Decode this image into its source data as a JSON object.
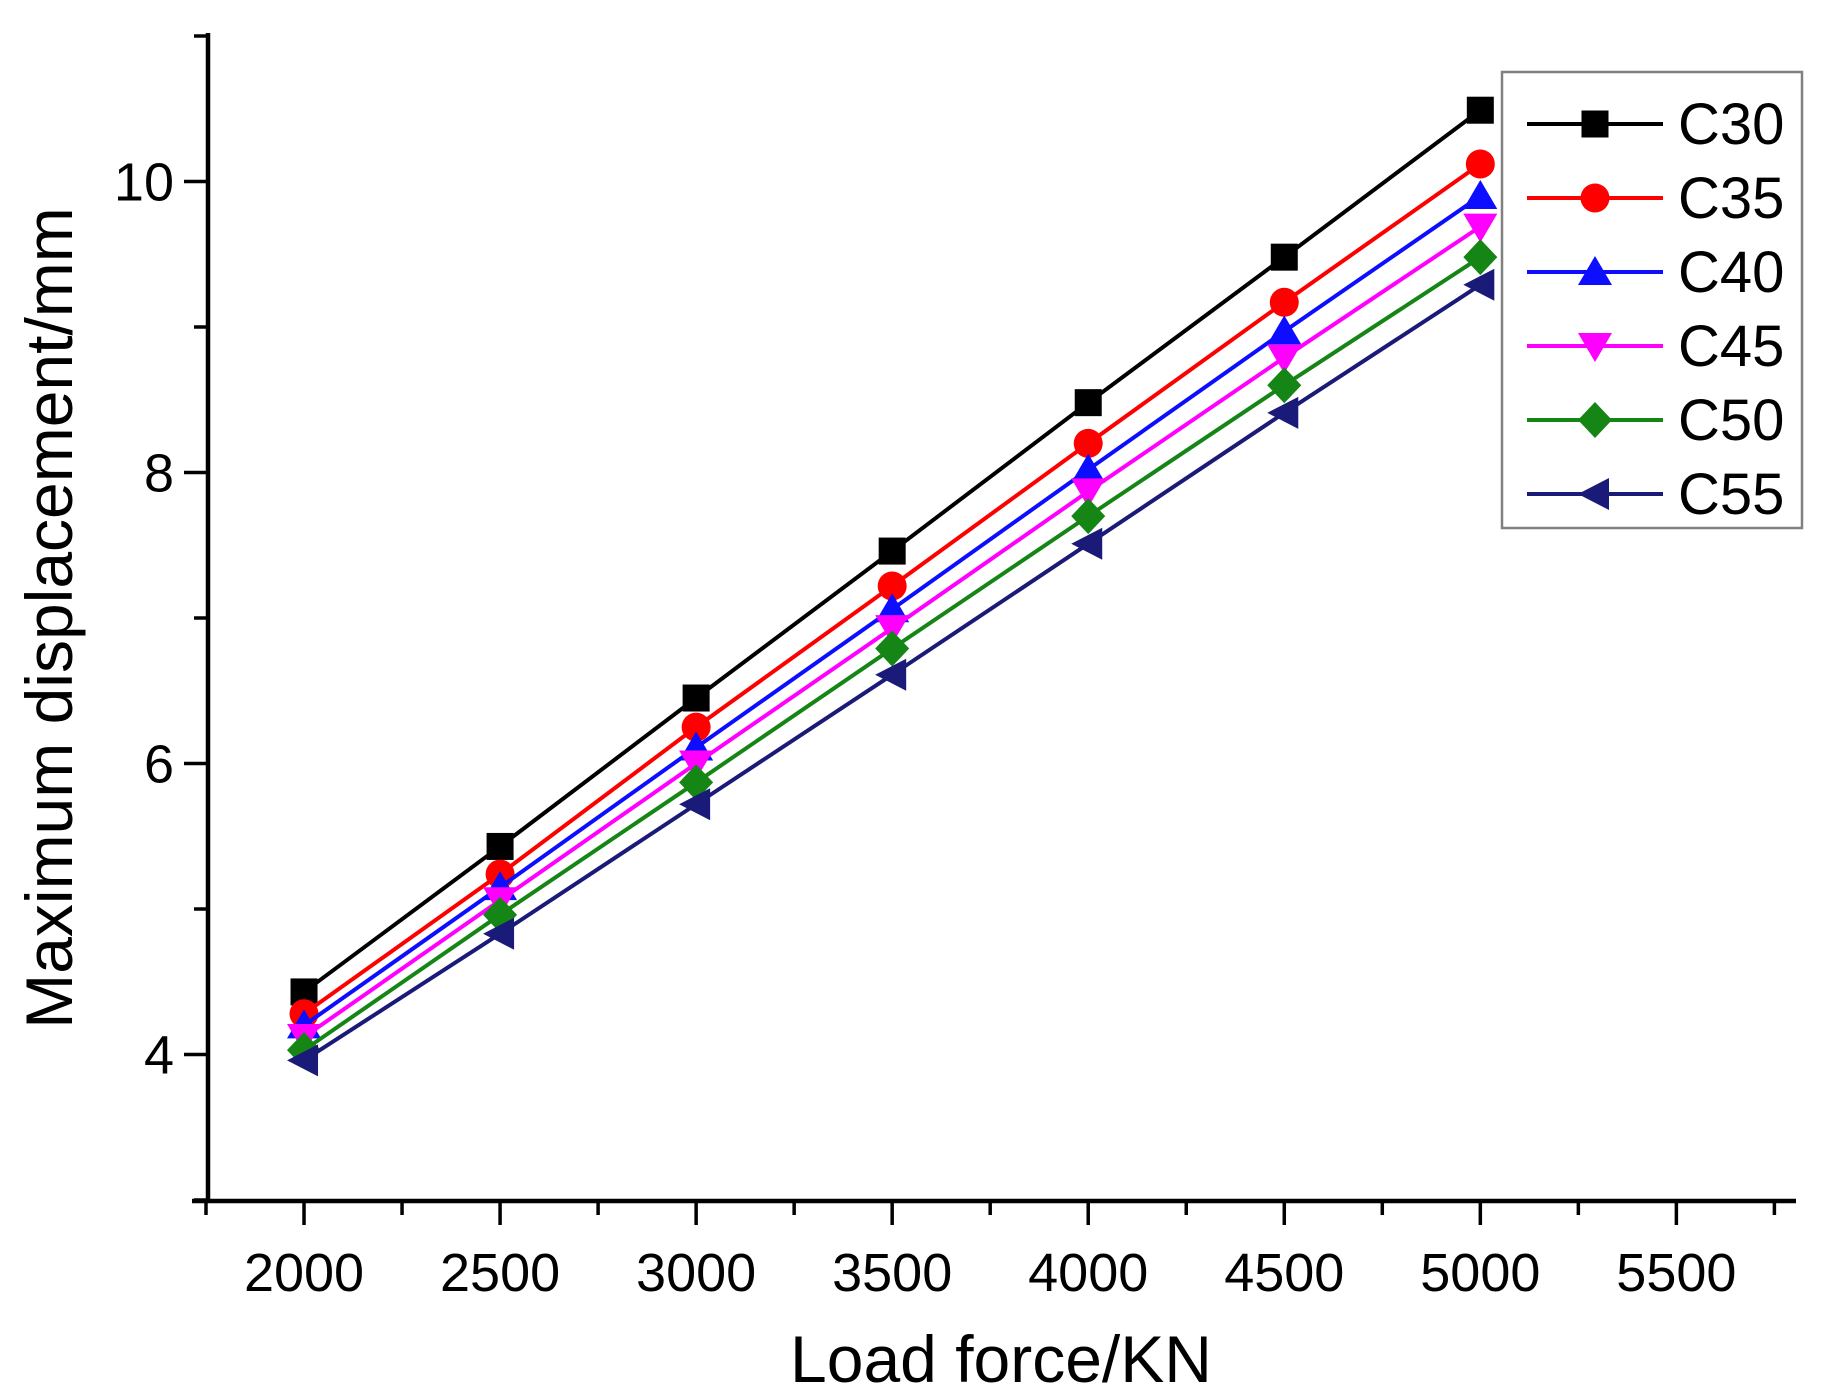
{
  "chart_data": {
    "type": "line",
    "title": "",
    "xlabel": "Load force/KN",
    "ylabel": "Maximum displacement/mm",
    "x": [
      2000,
      2500,
      3000,
      3500,
      4000,
      4500,
      5000
    ],
    "series": [
      {
        "name": "C30",
        "color": "#000000",
        "marker": "square",
        "values": [
          4.43,
          5.43,
          6.45,
          7.46,
          8.48,
          9.48,
          10.49
        ]
      },
      {
        "name": "C35",
        "color": "#ff0000",
        "marker": "circle",
        "values": [
          4.28,
          5.24,
          6.25,
          7.22,
          8.2,
          9.17,
          10.12
        ]
      },
      {
        "name": "C40",
        "color": "#0d0dff",
        "marker": "triangle-up",
        "values": [
          4.2,
          5.15,
          6.11,
          7.06,
          8.02,
          8.97,
          9.9
        ]
      },
      {
        "name": "C45",
        "color": "#ff00ff",
        "marker": "triangle-down",
        "values": [
          4.12,
          5.06,
          6.0,
          6.93,
          7.87,
          8.79,
          9.69
        ]
      },
      {
        "name": "C50",
        "color": "#158515",
        "marker": "diamond",
        "values": [
          4.03,
          4.96,
          5.87,
          6.79,
          7.7,
          8.6,
          9.48
        ]
      },
      {
        "name": "C55",
        "color": "#1a1a78",
        "marker": "triangle-left",
        "values": [
          3.96,
          4.83,
          5.72,
          6.61,
          7.51,
          8.41,
          9.29
        ]
      }
    ],
    "xlim": [
      1750,
      5800
    ],
    "ylim": [
      3,
      11
    ],
    "x_major_ticks": [
      2000,
      2500,
      3000,
      3500,
      4000,
      4500,
      5000,
      5500
    ],
    "x_minor_step": 250,
    "y_major_ticks": [
      4,
      6,
      8,
      10
    ],
    "y_minor_step": 1,
    "grid": false,
    "legend_position": "top-right",
    "legend_border_color": "#808080",
    "axis_color": "#000000",
    "background_color": "#ffffff"
  }
}
